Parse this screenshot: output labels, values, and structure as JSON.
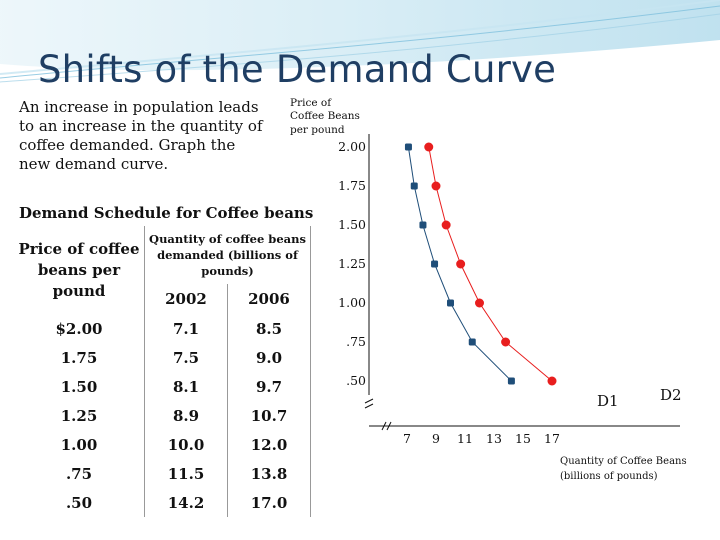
{
  "slide": {
    "title": "Shifts of the Demand Curve",
    "intro": "An increase in population leads to an increase in the quantity of coffee demanded. Graph the new demand curve."
  },
  "schedule": {
    "title": "Demand Schedule for Coffee beans",
    "price_header": "Price of coffee beans per pound",
    "quantity_header": "Quantity of coffee beans demanded (billions of pounds)",
    "years": [
      "2002",
      "2006"
    ],
    "rows": [
      {
        "price": "$2.00",
        "q2002": "7.1",
        "q2006": "8.5"
      },
      {
        "price": "1.75",
        "q2002": "7.5",
        "q2006": "9.0"
      },
      {
        "price": "1.50",
        "q2002": "8.1",
        "q2006": "9.7"
      },
      {
        "price": "1.25",
        "q2002": "8.9",
        "q2006": "10.7"
      },
      {
        "price": "1.00",
        "q2002": "10.0",
        "q2006": "12.0"
      },
      {
        "price": ".75",
        "q2002": "11.5",
        "q2006": "13.8"
      },
      {
        "price": ".50",
        "q2002": "14.2",
        "q2006": "17.0"
      }
    ]
  },
  "chart_data": {
    "type": "line",
    "ylabel_lines": [
      "Price of",
      "Coffee Beans",
      "per pound"
    ],
    "xlabel_lines": [
      "Quantity of Coffee Beans",
      "(billions of pounds)"
    ],
    "y_ticks": [
      {
        "value": 2.0,
        "label": "2.00"
      },
      {
        "value": 1.75,
        "label": "1.75"
      },
      {
        "value": 1.5,
        "label": "1.50"
      },
      {
        "value": 1.25,
        "label": "1.25"
      },
      {
        "value": 1.0,
        "label": "1.00"
      },
      {
        "value": 0.75,
        "label": ".75"
      },
      {
        "value": 0.5,
        "label": ".50"
      }
    ],
    "x_ticks": [
      {
        "value": 7,
        "label": "7"
      },
      {
        "value": 9,
        "label": "9"
      },
      {
        "value": 11,
        "label": "11"
      },
      {
        "value": 13,
        "label": "13"
      },
      {
        "value": 15,
        "label": "15"
      },
      {
        "value": 17,
        "label": "17"
      }
    ],
    "axis_break": true,
    "series": [
      {
        "name": "D1",
        "color": "#1f4e79",
        "points": [
          [
            7.1,
            2.0
          ],
          [
            7.5,
            1.75
          ],
          [
            8.1,
            1.5
          ],
          [
            8.9,
            1.25
          ],
          [
            10.0,
            1.0
          ],
          [
            11.5,
            0.75
          ],
          [
            14.2,
            0.5
          ]
        ]
      },
      {
        "name": "D2",
        "color": "#e81e1e",
        "points": [
          [
            8.5,
            2.0
          ],
          [
            9.0,
            1.75
          ],
          [
            9.7,
            1.5
          ],
          [
            10.7,
            1.25
          ],
          [
            12.0,
            1.0
          ],
          [
            13.8,
            0.75
          ],
          [
            17.0,
            0.5
          ]
        ]
      }
    ]
  }
}
